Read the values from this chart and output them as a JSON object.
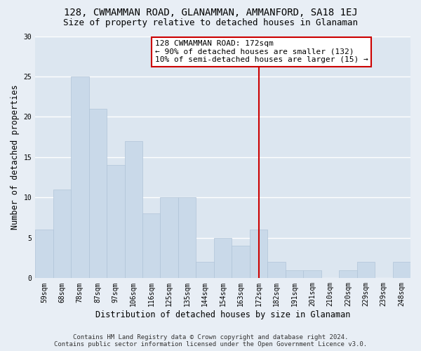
{
  "title": "128, CWMAMMAN ROAD, GLANAMMAN, AMMANFORD, SA18 1EJ",
  "subtitle": "Size of property relative to detached houses in Glanaman",
  "xlabel": "Distribution of detached houses by size in Glanaman",
  "ylabel": "Number of detached properties",
  "categories": [
    "59sqm",
    "68sqm",
    "78sqm",
    "87sqm",
    "97sqm",
    "106sqm",
    "116sqm",
    "125sqm",
    "135sqm",
    "144sqm",
    "154sqm",
    "163sqm",
    "172sqm",
    "182sqm",
    "191sqm",
    "201sqm",
    "210sqm",
    "220sqm",
    "229sqm",
    "239sqm",
    "248sqm"
  ],
  "values": [
    6,
    11,
    25,
    21,
    14,
    17,
    8,
    10,
    10,
    2,
    5,
    4,
    6,
    2,
    1,
    1,
    0,
    1,
    2,
    0,
    2
  ],
  "bar_color": "#c9d9e9",
  "bar_edge_color": "#b0c4d8",
  "vline_x_index": 12,
  "vline_color": "#cc0000",
  "annotation_title": "128 CWMAMMAN ROAD: 172sqm",
  "annotation_line1": "← 90% of detached houses are smaller (132)",
  "annotation_line2": "10% of semi-detached houses are larger (15) →",
  "annotation_box_facecolor": "#ffffff",
  "annotation_box_edgecolor": "#cc0000",
  "ylim": [
    0,
    30
  ],
  "yticks": [
    0,
    5,
    10,
    15,
    20,
    25,
    30
  ],
  "footnote1": "Contains HM Land Registry data © Crown copyright and database right 2024.",
  "footnote2": "Contains public sector information licensed under the Open Government Licence v3.0.",
  "background_color": "#e8eef5",
  "plot_background_color": "#dce6f0",
  "grid_color": "#ffffff",
  "title_fontsize": 10,
  "subtitle_fontsize": 9,
  "axis_label_fontsize": 8.5,
  "tick_fontsize": 7,
  "annotation_fontsize": 8,
  "footnote_fontsize": 6.5
}
